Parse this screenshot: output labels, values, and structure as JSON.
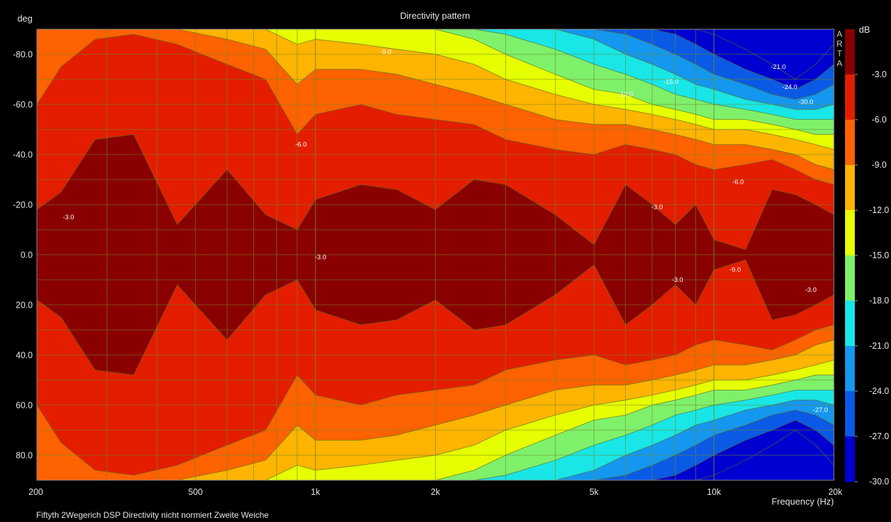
{
  "chart_data": {
    "type": "heatmap",
    "title": "Directivity pattern",
    "ylabel": "deg",
    "xlabel": "Frequency (Hz)",
    "footer": "Fiftyth 2Wegerich DSP Directivity nicht normiert Zweite Weiche",
    "brand": [
      "A",
      "R",
      "T",
      "A"
    ],
    "colorbar_unit": "dB",
    "x_scale": "log",
    "xlim": [
      200,
      20000
    ],
    "ylim": [
      -90,
      90
    ],
    "x_ticks": [
      {
        "value": 200,
        "label": "200"
      },
      {
        "value": 500,
        "label": "500"
      },
      {
        "value": 1000,
        "label": "1k"
      },
      {
        "value": 2000,
        "label": "2k"
      },
      {
        "value": 5000,
        "label": "5k"
      },
      {
        "value": 10000,
        "label": "10k"
      },
      {
        "value": 20000,
        "label": "20k"
      }
    ],
    "y_ticks": [
      {
        "value": -80,
        "label": "-80.0"
      },
      {
        "value": -60,
        "label": "-60.0"
      },
      {
        "value": -40,
        "label": "-40.0"
      },
      {
        "value": -20,
        "label": "-20.0"
      },
      {
        "value": 0,
        "label": "0.0"
      },
      {
        "value": 20,
        "label": "20.0"
      },
      {
        "value": 40,
        "label": "40.0"
      },
      {
        "value": 60,
        "label": "60.0"
      },
      {
        "value": 80,
        "label": "80.0"
      }
    ],
    "levels": [
      {
        "label": "-3.0",
        "color": "#8a0000"
      },
      {
        "label": "-6.0",
        "color": "#e41d00"
      },
      {
        "label": "-9.0",
        "color": "#ff6200"
      },
      {
        "label": "-12.0",
        "color": "#ffb400"
      },
      {
        "label": "-15.0",
        "color": "#e6ff00"
      },
      {
        "label": "-18.0",
        "color": "#7ff06a"
      },
      {
        "label": "-21.0",
        "color": "#19e6e6"
      },
      {
        "label": "-24.0",
        "color": "#1497ee"
      },
      {
        "label": "-27.0",
        "color": "#0a5ae6"
      },
      {
        "label": "-30.0",
        "color": "#0000d0"
      }
    ],
    "colorbar_ticks": [
      "-3.0",
      "-6.0",
      "-9.0",
      "-12.0",
      "-15.0",
      "-18.0",
      "-21.0",
      "-24.0",
      "-27.0",
      "-30.0"
    ],
    "beamwidth_db": {
      "x": [
        200,
        230,
        280,
        350,
        450,
        600,
        750,
        900,
        1000,
        1300,
        1600,
        2000,
        2500,
        3000,
        4000,
        5000,
        6000,
        7000,
        8000,
        9000,
        10000,
        12000,
        14000,
        16000,
        18000,
        20000
      ],
      "m3": [
        18,
        25,
        46,
        48,
        12,
        34,
        16,
        10,
        22,
        28,
        26,
        18,
        30,
        28,
        16,
        4,
        28,
        20,
        12,
        20,
        6,
        2,
        26,
        24,
        20,
        16
      ],
      "m6": [
        60,
        75,
        86,
        88,
        84,
        76,
        70,
        48,
        56,
        60,
        56,
        54,
        52,
        46,
        42,
        40,
        44,
        42,
        40,
        36,
        34,
        36,
        38,
        34,
        30,
        28
      ],
      "m9": [
        90,
        90,
        90,
        90,
        90,
        86,
        82,
        68,
        74,
        74,
        72,
        68,
        64,
        60,
        54,
        52,
        52,
        50,
        48,
        46,
        44,
        44,
        42,
        40,
        36,
        34
      ],
      "m12": [
        90,
        90,
        90,
        90,
        90,
        90,
        90,
        84,
        86,
        84,
        82,
        80,
        76,
        70,
        64,
        60,
        58,
        56,
        54,
        52,
        50,
        50,
        48,
        46,
        44,
        42
      ],
      "m15": [
        90,
        90,
        90,
        90,
        90,
        90,
        90,
        90,
        90,
        90,
        90,
        90,
        86,
        80,
        72,
        66,
        64,
        60,
        58,
        56,
        54,
        54,
        52,
        50,
        48,
        48
      ],
      "m18": [
        90,
        90,
        90,
        90,
        90,
        90,
        90,
        90,
        90,
        90,
        90,
        90,
        90,
        88,
        82,
        76,
        72,
        68,
        64,
        62,
        60,
        58,
        56,
        54,
        54,
        54
      ],
      "m21": [
        90,
        90,
        90,
        90,
        90,
        90,
        90,
        90,
        90,
        90,
        90,
        90,
        90,
        90,
        90,
        86,
        80,
        76,
        72,
        68,
        66,
        62,
        60,
        58,
        58,
        60
      ],
      "m24": [
        90,
        90,
        90,
        90,
        90,
        90,
        90,
        90,
        90,
        90,
        90,
        90,
        90,
        90,
        90,
        90,
        88,
        84,
        80,
        76,
        72,
        68,
        64,
        62,
        64,
        68
      ],
      "m27": [
        90,
        90,
        90,
        90,
        90,
        90,
        90,
        90,
        90,
        90,
        90,
        90,
        90,
        90,
        90,
        90,
        90,
        90,
        88,
        84,
        80,
        74,
        70,
        66,
        70,
        76
      ],
      "m30": [
        90,
        90,
        90,
        90,
        90,
        90,
        90,
        90,
        90,
        90,
        90,
        90,
        90,
        90,
        90,
        90,
        90,
        90,
        90,
        90,
        88,
        82,
        76,
        70,
        76,
        84
      ]
    },
    "contour_labels": [
      {
        "text": "-3.0",
        "x": 240,
        "y": -15
      },
      {
        "text": "-3.0",
        "x": 1030,
        "y": 1
      },
      {
        "text": "-3.0",
        "x": 7200,
        "y": -19
      },
      {
        "text": "-3.0",
        "x": 8100,
        "y": 10
      },
      {
        "text": "-3.0",
        "x": 17500,
        "y": 14
      },
      {
        "text": "-6.0",
        "x": 920,
        "y": -44
      },
      {
        "text": "-6.0",
        "x": 11500,
        "y": -29
      },
      {
        "text": "-9.0",
        "x": 11300,
        "y": 6
      },
      {
        "text": "-9.0",
        "x": 1500,
        "y": -81
      },
      {
        "text": "-12.0",
        "x": 6000,
        "y": -64
      },
      {
        "text": "-15.0",
        "x": 7800,
        "y": -69
      },
      {
        "text": "-21.0",
        "x": 14500,
        "y": -75
      },
      {
        "text": "-24.0",
        "x": 15500,
        "y": -67
      },
      {
        "text": "-30.0",
        "x": 17000,
        "y": -61
      },
      {
        "text": "-27.0",
        "x": 18500,
        "y": 62
      }
    ],
    "grid": true
  }
}
